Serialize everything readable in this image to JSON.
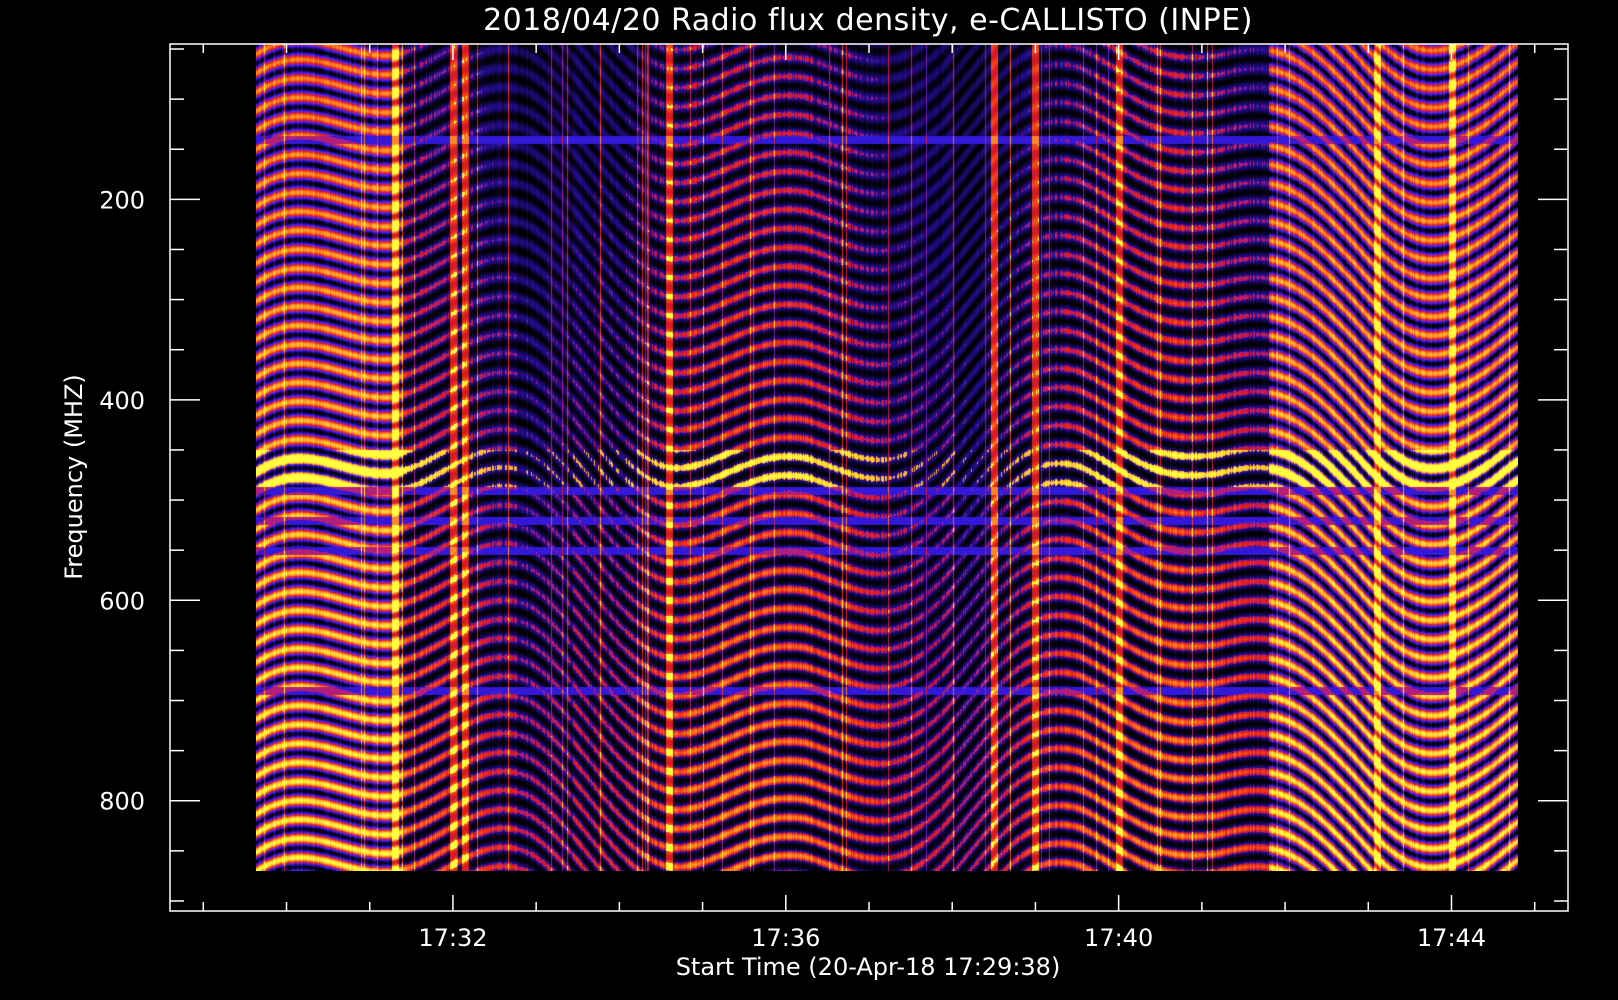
{
  "chart_data": {
    "type": "heatmap",
    "title": "2018/04/20  Radio flux density, e-CALLISTO (INPE)",
    "xlabel": "Start Time (20-Apr-18 17:29:38)",
    "ylabel": "Frequency (MHZ)",
    "x_start": "17:29:38",
    "x_end": "17:44:48",
    "xlim_minutes": [
      28.6,
      45.4
    ],
    "ylim": [
      45,
      910
    ],
    "y_inverted": true,
    "data_freq_range": [
      45,
      870
    ],
    "x_major_ticks": [
      {
        "minute": 32,
        "label": "17:32"
      },
      {
        "minute": 36,
        "label": "17:36"
      },
      {
        "minute": 40,
        "label": "17:40"
      },
      {
        "minute": 44,
        "label": "17:44"
      }
    ],
    "x_minor_step_minutes": 1,
    "y_major_ticks": [
      {
        "value": 200,
        "label": "200"
      },
      {
        "value": 400,
        "label": "400"
      },
      {
        "value": 600,
        "label": "600"
      },
      {
        "value": 800,
        "label": "800"
      }
    ],
    "y_minor_step": 50,
    "colormap": [
      "#000000",
      "#2a0fa8",
      "#3a22ff",
      "#a020a0",
      "#e01818",
      "#ff6a1a",
      "#ffb830",
      "#ffff40"
    ],
    "horizontal_bands_mhz": [
      140,
      490,
      520,
      550,
      690
    ],
    "bright_band_mhz": [
      450,
      490
    ],
    "dark_interval_minutes": [
      31.4,
      41.8
    ],
    "vertical_streaks_minutes": [
      31.3,
      32.0,
      32.15,
      34.6,
      38.5,
      39.0,
      40.0,
      43.1,
      44.0
    ]
  }
}
